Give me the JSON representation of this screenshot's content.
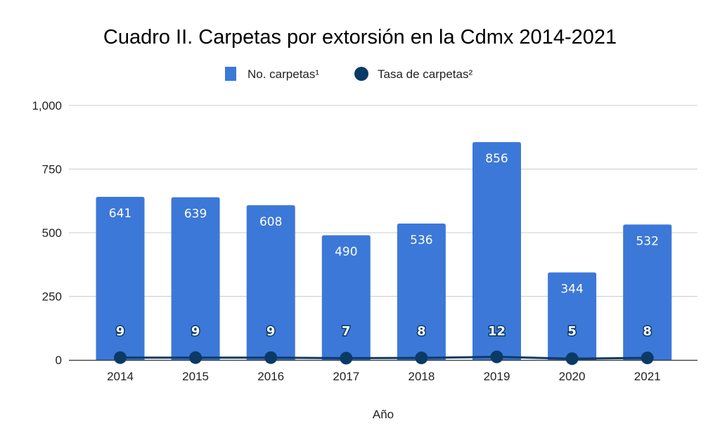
{
  "chart_data": {
    "type": "bar",
    "title": "Cuadro II. Carpetas por extorsión en la Cdmx 2014-2021",
    "xlabel": "Año",
    "ylabel": "",
    "categories": [
      "2014",
      "2015",
      "2016",
      "2017",
      "2018",
      "2019",
      "2020",
      "2021"
    ],
    "ylim": [
      0,
      1000
    ],
    "yticks": [
      0,
      250,
      500,
      750,
      1000
    ],
    "ytick_labels": [
      "0",
      "250",
      "500",
      "750",
      "1,000"
    ],
    "grid": true,
    "legend_position": "top",
    "series": [
      {
        "name": "No. carpetas¹",
        "type": "bar",
        "color": "#3c78d8",
        "values": [
          641,
          639,
          608,
          490,
          536,
          856,
          344,
          532
        ]
      },
      {
        "name": "Tasa de carpetas²",
        "type": "line",
        "color": "#0b3a66",
        "values": [
          9,
          9,
          9,
          7,
          8,
          12,
          5,
          8
        ]
      }
    ]
  }
}
